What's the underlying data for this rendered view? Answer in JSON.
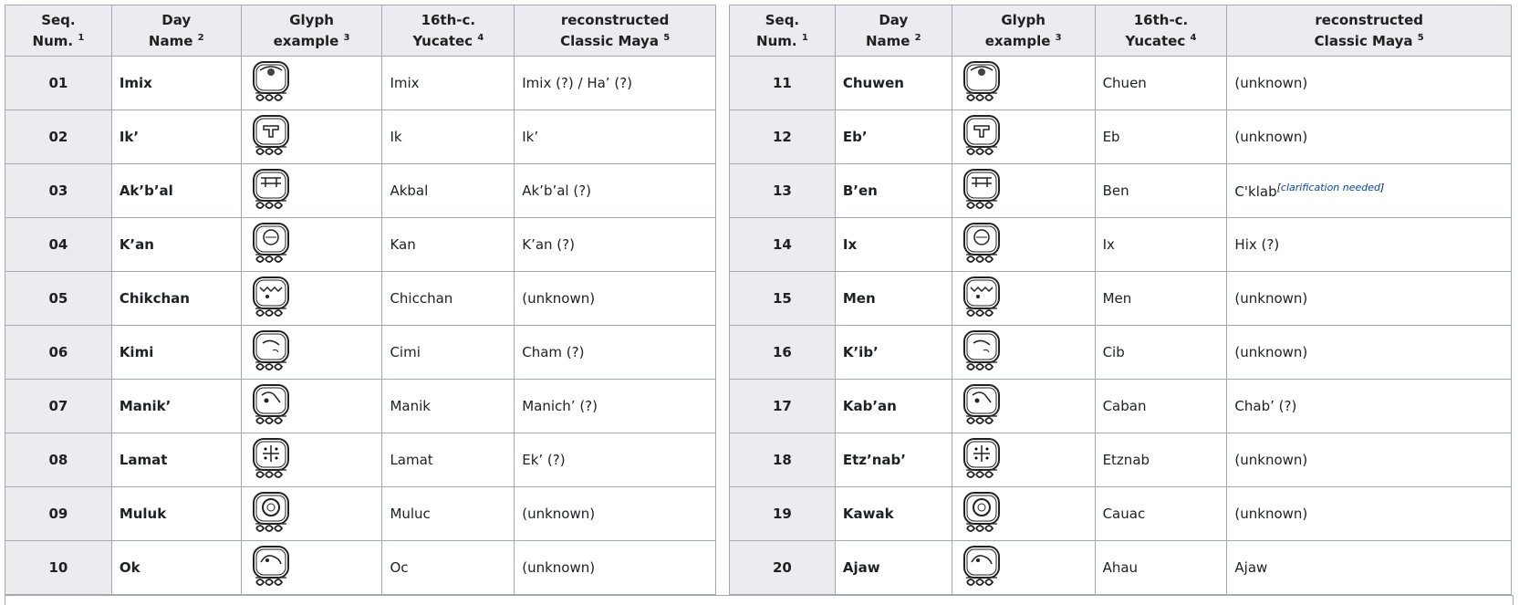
{
  "headers": [
    {
      "line1": "Seq.",
      "line2": "Num.",
      "note": "1"
    },
    {
      "line1": "Day",
      "line2": "Name",
      "note": "2"
    },
    {
      "line1": "Glyph",
      "line2": "example",
      "note": "3"
    },
    {
      "line1": "16th-c.",
      "line2": "Yucatec",
      "note": "4"
    },
    {
      "line1": "reconstructed",
      "line2": "Classic Maya",
      "note": "5"
    }
  ],
  "left_rows": [
    {
      "num": "01",
      "name": "Imix",
      "glyph": "imix-glyph",
      "yucatec": "Imix",
      "classic": "Imix (?) / Ha’ (?)"
    },
    {
      "num": "02",
      "name": "Ik’",
      "glyph": "ik-glyph",
      "yucatec": "Ik",
      "classic": "Ik’"
    },
    {
      "num": "03",
      "name": "Ak’b’al",
      "glyph": "akbal-glyph",
      "yucatec": "Akbal",
      "classic": "Ak’b’al (?)"
    },
    {
      "num": "04",
      "name": "K’an",
      "glyph": "kan-glyph",
      "yucatec": "Kan",
      "classic": "K’an (?)"
    },
    {
      "num": "05",
      "name": "Chikchan",
      "glyph": "chikchan-glyph",
      "yucatec": "Chicchan",
      "classic": "(unknown)"
    },
    {
      "num": "06",
      "name": "Kimi",
      "glyph": "kimi-glyph",
      "yucatec": "Cimi",
      "classic": "Cham (?)"
    },
    {
      "num": "07",
      "name": "Manik’",
      "glyph": "manik-glyph",
      "yucatec": "Manik",
      "classic": "Manich’ (?)"
    },
    {
      "num": "08",
      "name": "Lamat",
      "glyph": "lamat-glyph",
      "yucatec": "Lamat",
      "classic": "Ek’ (?)"
    },
    {
      "num": "09",
      "name": "Muluk",
      "glyph": "muluk-glyph",
      "yucatec": "Muluc",
      "classic": "(unknown)"
    },
    {
      "num": "10",
      "name": "Ok",
      "glyph": "ok-glyph",
      "yucatec": "Oc",
      "classic": "(unknown)"
    }
  ],
  "right_rows": [
    {
      "num": "11",
      "name": "Chuwen",
      "glyph": "chuwen-glyph",
      "yucatec": "Chuen",
      "classic": "(unknown)"
    },
    {
      "num": "12",
      "name": "Eb’",
      "glyph": "eb-glyph",
      "yucatec": "Eb",
      "classic": "(unknown)"
    },
    {
      "num": "13",
      "name": "B’en",
      "glyph": "ben-glyph",
      "yucatec": "Ben",
      "classic": "C'klab",
      "clarification": "clarification needed"
    },
    {
      "num": "14",
      "name": "Ix",
      "glyph": "ix-glyph",
      "yucatec": "Ix",
      "classic": "Hix (?)"
    },
    {
      "num": "15",
      "name": "Men",
      "glyph": "men-glyph",
      "yucatec": "Men",
      "classic": "(unknown)"
    },
    {
      "num": "16",
      "name": "K’ib’",
      "glyph": "kib-glyph",
      "yucatec": "Cib",
      "classic": "(unknown)"
    },
    {
      "num": "17",
      "name": "Kab’an",
      "glyph": "kaban-glyph",
      "yucatec": "Caban",
      "classic": "Chab’ (?)"
    },
    {
      "num": "18",
      "name": "Etz’nab’",
      "glyph": "etznab-glyph",
      "yucatec": "Etznab",
      "classic": "(unknown)"
    },
    {
      "num": "19",
      "name": "Kawak",
      "glyph": "kawak-glyph",
      "yucatec": "Cauac",
      "classic": "(unknown)"
    },
    {
      "num": "20",
      "name": "Ajaw",
      "glyph": "ajaw-glyph",
      "yucatec": "Ahau",
      "classic": "Ajaw"
    }
  ],
  "colors": {
    "header_bg": "#eaecf0",
    "border": "#a2a9b1",
    "link": "#0645ad"
  }
}
